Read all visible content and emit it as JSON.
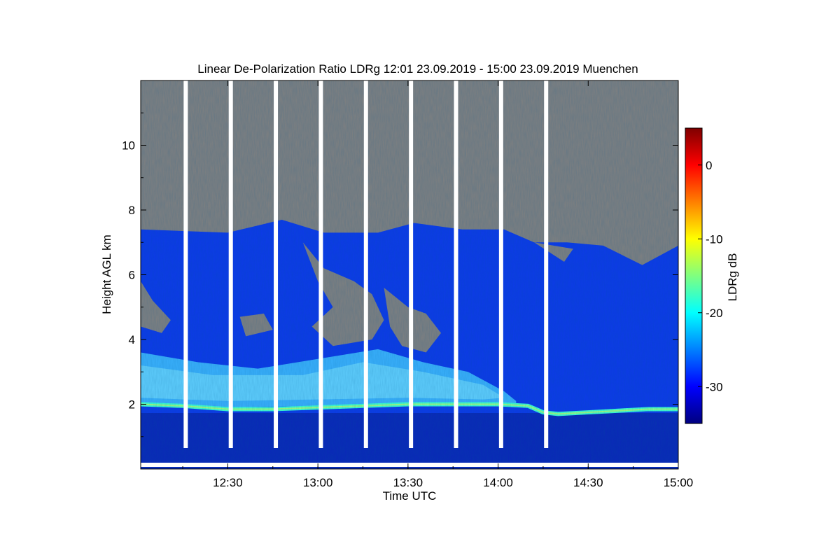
{
  "chart_data": {
    "type": "heatmap",
    "title": "Linear De-Polarization Ratio LDRg   12:01 23.09.2019 - 15:00 23.09.2019 Muenchen",
    "xlabel": "Time UTC",
    "ylabel": "Height AGL km",
    "colorbar_label": "LDRg dB",
    "x_ticks": [
      {
        "value": 30,
        "label": "12:30"
      },
      {
        "value": 60,
        "label": "13:00"
      },
      {
        "value": 90,
        "label": "13:30"
      },
      {
        "value": 120,
        "label": "14:00"
      },
      {
        "value": 150,
        "label": "14:30"
      },
      {
        "value": 180,
        "label": "15:00"
      }
    ],
    "x_range_minutes_after_12": [
      1,
      180
    ],
    "y_ticks": [
      {
        "value": 2,
        "label": "2"
      },
      {
        "value": 4,
        "label": "4"
      },
      {
        "value": 6,
        "label": "6"
      },
      {
        "value": 8,
        "label": "8"
      },
      {
        "value": 10,
        "label": "10"
      }
    ],
    "ylim": [
      0,
      12
    ],
    "colorbar_ticks": [
      {
        "value": 0,
        "label": "0"
      },
      {
        "value": -10,
        "label": "-10"
      },
      {
        "value": -20,
        "label": "-20"
      },
      {
        "value": -30,
        "label": "-30"
      }
    ],
    "colorbar_range": [
      -35,
      5
    ],
    "data_gaps_minutes_after_12": [
      16,
      31,
      46,
      61,
      76,
      91,
      106,
      121,
      136
    ],
    "layers": [
      {
        "name": "boundary layer top",
        "height_km": 1.9,
        "ldr_db": -22
      },
      {
        "name": "cloud base layer",
        "height_km_range": [
          2,
          3.6
        ],
        "ldr_db": -23
      },
      {
        "name": "cloud body",
        "height_km_range": [
          1.9,
          7.5
        ],
        "ldr_db": -30
      },
      {
        "name": "near surface",
        "height_km_range": [
          0,
          1.8
        ],
        "ldr_db": -32
      }
    ],
    "cloud_top_km": [
      {
        "minute": 1,
        "height": 7.4
      },
      {
        "minute": 30,
        "height": 7.3
      },
      {
        "minute": 48,
        "height": 7.7
      },
      {
        "minute": 62,
        "height": 7.3
      },
      {
        "minute": 80,
        "height": 7.3
      },
      {
        "minute": 92,
        "height": 7.6
      },
      {
        "minute": 108,
        "height": 7.4
      },
      {
        "minute": 122,
        "height": 7.4
      },
      {
        "minute": 132,
        "height": 7.0
      },
      {
        "minute": 143,
        "height": 7.0
      },
      {
        "minute": 155,
        "height": 6.9
      },
      {
        "minute": 168,
        "height": 6.3
      },
      {
        "minute": 180,
        "height": 6.9
      }
    ]
  }
}
